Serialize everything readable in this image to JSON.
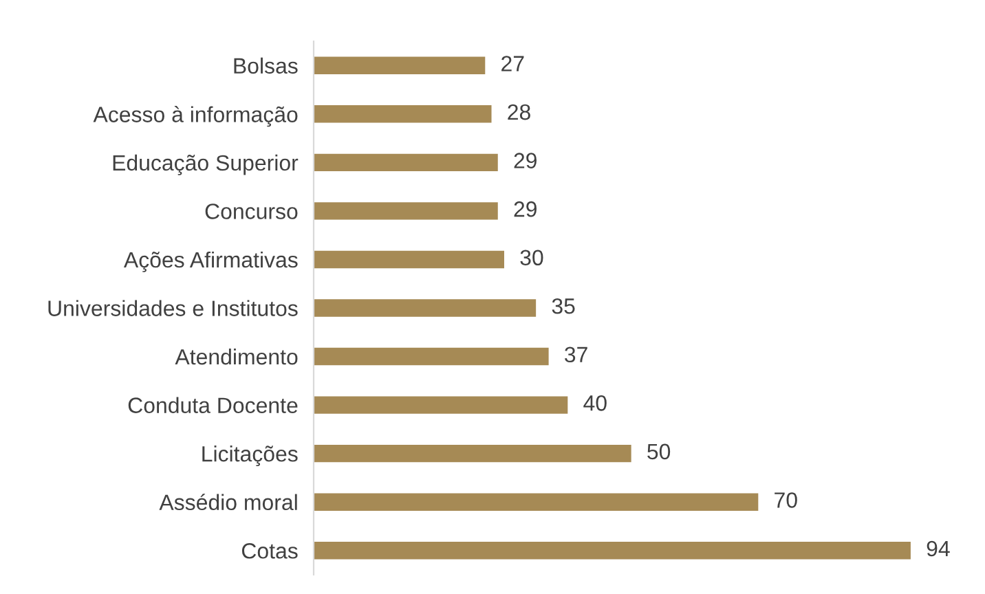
{
  "chart_data": {
    "type": "bar",
    "orientation": "horizontal",
    "categories": [
      "Bolsas",
      "Acesso à informação",
      "Educação Superior",
      "Concurso",
      "Ações Afirmativas",
      "Universidades e Institutos",
      "Atendimento",
      "Conduta Docente",
      "Licitações",
      "Assédio moral",
      "Cotas"
    ],
    "values": [
      27,
      28,
      29,
      29,
      30,
      35,
      37,
      40,
      50,
      70,
      94
    ],
    "color": "#a68a55",
    "data_labels": true,
    "tick_labels": "y",
    "grid": false,
    "legend": false
  }
}
